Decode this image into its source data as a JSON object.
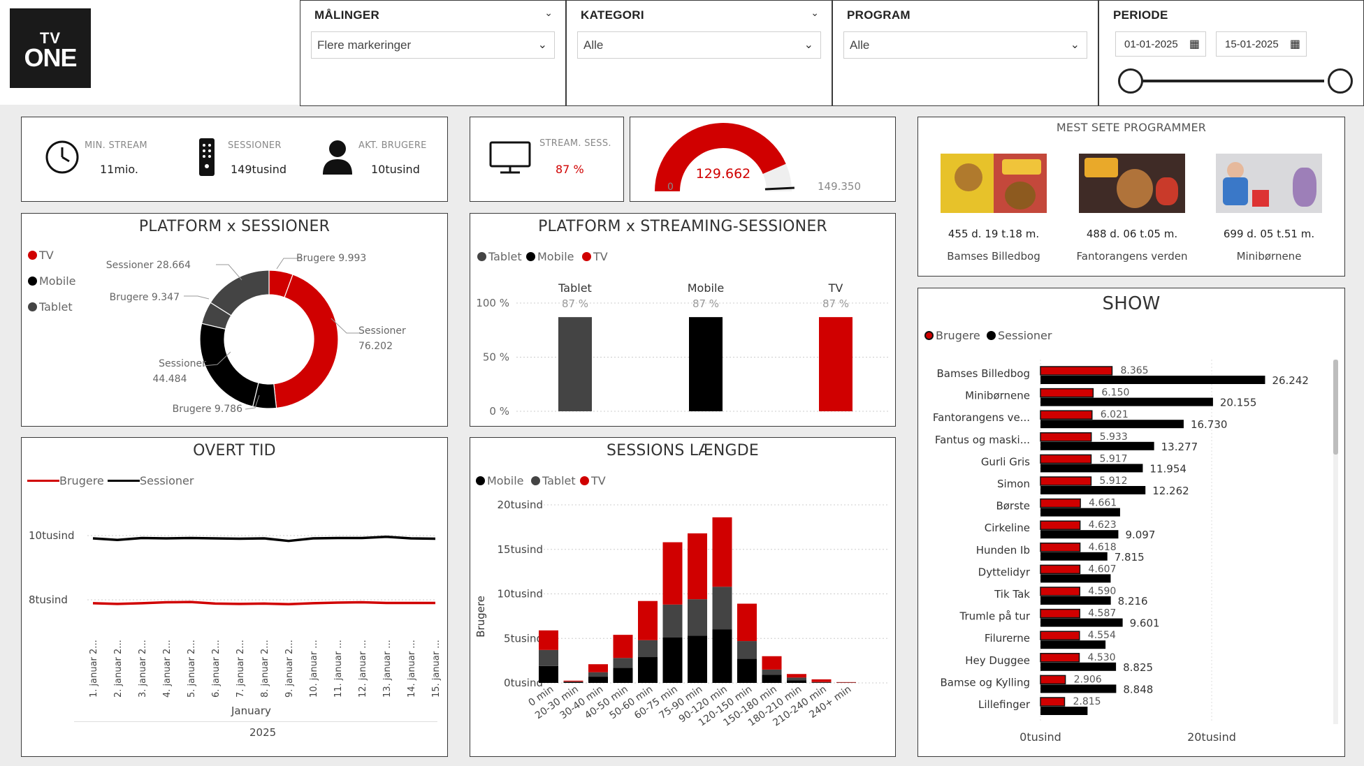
{
  "logo": {
    "line1": "TV",
    "line2": "ONE"
  },
  "filters": {
    "maalinger": {
      "title": "MÅLINGER",
      "value": "Flere markeringer"
    },
    "kategori": {
      "title": "KATEGORI",
      "value": "Alle"
    },
    "program": {
      "title": "PROGRAM",
      "value": "Alle"
    },
    "periode": {
      "title": "PERIODE",
      "from": "01-01-2025",
      "to": "15-01-2025",
      "range": [
        0,
        1
      ]
    }
  },
  "kpis": {
    "min_stream": {
      "label": "MIN. STREAM",
      "value": "11mio."
    },
    "sessioner": {
      "label": "SESSIONER",
      "value": "149tusind"
    },
    "akt_brugere": {
      "label": "AKT. BRUGERE",
      "value": "10tusind"
    },
    "stream_sess": {
      "label": "STREAM. SESS.",
      "value": "87 %"
    }
  },
  "gauge": {
    "min": "0",
    "value": "129.662",
    "max": "149.350",
    "value_num": 129662,
    "max_num": 149350,
    "target_num": 147000
  },
  "most_seen": {
    "title": "MEST SETE PROGRAMMER",
    "items": [
      {
        "duration": "455 d. 19 t.18 m.",
        "name": "Bamses Billedbog"
      },
      {
        "duration": "488 d. 06 t.05 m.",
        "name": "Fantorangens verden"
      },
      {
        "duration": "699 d. 05 t.51 m.",
        "name": "Minibørnene"
      }
    ]
  },
  "platform_sessions": {
    "title": "PLATFORM x SESSIONER",
    "legend": [
      "TV",
      "Mobile",
      "Tablet"
    ],
    "labels": {
      "sess_tablet": "Sessioner 28.664",
      "brug_tv": "Brugere 9.993",
      "brug_tablet": "Brugere 9.347",
      "sess_tv_1": "Sessioner",
      "sess_tv_2": "76.202",
      "sess_mob_1": "Sessioner",
      "sess_mob_2": "44.484",
      "brug_mob": "Brugere 9.786"
    }
  },
  "platform_streaming": {
    "title": "PLATFORM x STREAMING-SESSIONER",
    "legend": [
      "Tablet",
      "Mobile",
      "TV"
    ],
    "yticks": [
      "100 %",
      "50 %",
      "0 %"
    ],
    "bar_labels": [
      "87 %",
      "87 %",
      "87 %"
    ]
  },
  "overtime": {
    "title": "OVERT TID",
    "legend": [
      "Brugere",
      "Sessioner"
    ],
    "yticks": [
      "10tusind",
      "8tusind"
    ],
    "xlabel_month": "January",
    "xlabel_year": "2025"
  },
  "session_length": {
    "title": "SESSIONS LÆNGDE",
    "legend": [
      "Mobile",
      "Tablet",
      "TV"
    ],
    "ylabel": "Brugere",
    "yticks": [
      "20tusind",
      "15tusind",
      "10tusind",
      "5tusind",
      "0tusind"
    ]
  },
  "show": {
    "title": "SHOW",
    "legend": [
      "Brugere",
      "Sessioner"
    ],
    "xticks": [
      "0tusind",
      "20tusind"
    ]
  },
  "chart_data": [
    {
      "type": "pie",
      "title": "PLATFORM x SESSIONER",
      "rings": [
        {
          "name": "Sessioner",
          "categories": [
            "TV",
            "Mobile",
            "Tablet"
          ],
          "values": [
            76202,
            44484,
            28664
          ]
        },
        {
          "name": "Brugere",
          "categories": [
            "TV",
            "Mobile",
            "Tablet"
          ],
          "values": [
            9993,
            9786,
            9347
          ]
        }
      ]
    },
    {
      "type": "bar",
      "title": "PLATFORM x STREAMING-SESSIONER",
      "categories": [
        "Tablet",
        "Mobile",
        "TV"
      ],
      "values": [
        87,
        87,
        87
      ],
      "ylim": [
        0,
        100
      ],
      "colors": [
        "#444444",
        "#000000",
        "#d00000"
      ]
    },
    {
      "type": "line",
      "title": "OVERT TID",
      "x": [
        "1. januar 2...",
        "2. januar 2...",
        "3. januar 2...",
        "4. januar 2...",
        "5. januar 2...",
        "6. januar 2...",
        "7. januar 2...",
        "8. januar 2...",
        "9. januar 2...",
        "10. januar ...",
        "11. januar ...",
        "12. januar ...",
        "13. januar ...",
        "14. januar ...",
        "15. januar ..."
      ],
      "ylim": [
        7000,
        11000
      ],
      "series": [
        {
          "name": "Brugere",
          "color": "#d00000",
          "values": [
            7980,
            7960,
            7980,
            8010,
            8020,
            7970,
            7960,
            7970,
            7950,
            7980,
            8000,
            8010,
            7990,
            7990,
            7990
          ]
        },
        {
          "name": "Sessioner",
          "color": "#000000",
          "values": [
            10000,
            9950,
            10010,
            10000,
            10010,
            10000,
            9990,
            10000,
            9920,
            10000,
            10010,
            10010,
            10050,
            10000,
            9990
          ]
        }
      ]
    },
    {
      "type": "bar",
      "stacked": true,
      "title": "SESSIONS LÆNGDE",
      "ylabel": "Brugere",
      "ylim": [
        0,
        20000
      ],
      "categories": [
        "0 min",
        "20-30 min",
        "30-40 min",
        "40-50 min",
        "50-60 min",
        "60-75 min",
        "75-90 min",
        "90-120 min",
        "120-150 min",
        "150-180 min",
        "180-210 min",
        "210-240 min",
        "240+ min"
      ],
      "series": [
        {
          "name": "Mobile",
          "color": "#000000",
          "values": [
            1900,
            100,
            700,
            1700,
            2900,
            5100,
            5300,
            6000,
            2700,
            900,
            300,
            50,
            20
          ]
        },
        {
          "name": "Tablet",
          "color": "#444444",
          "values": [
            1800,
            50,
            500,
            1100,
            1900,
            3700,
            4100,
            4800,
            2000,
            600,
            300,
            50,
            20
          ]
        },
        {
          "name": "TV",
          "color": "#d00000",
          "values": [
            2200,
            100,
            900,
            2600,
            4400,
            7000,
            7400,
            7800,
            4200,
            1500,
            400,
            300,
            50
          ]
        }
      ]
    },
    {
      "type": "bar",
      "orientation": "horizontal",
      "title": "SHOW",
      "categories": [
        "Bamses Billedbog",
        "Minibørnene",
        "Fantorangens ve...",
        "Fantus og maski...",
        "Gurli Gris",
        "Simon",
        "Børste",
        "Cirkeline",
        "Hunden Ib",
        "Dyttelidyr",
        "Tik Tak",
        "Trumle på tur",
        "Filurerne",
        "Hey Duggee",
        "Bamse og Kylling",
        "Lillefinger"
      ],
      "series": [
        {
          "name": "Brugere",
          "color": "#d00000",
          "values": [
            8365,
            6150,
            6021,
            5933,
            5917,
            5912,
            4661,
            4623,
            4618,
            4607,
            4590,
            4587,
            4554,
            4530,
            2906,
            2815
          ],
          "labels": [
            "8.365",
            "6.150",
            "6.021",
            "5.933",
            "5.917",
            "5.912",
            "4.661",
            "4.623",
            "4.618",
            "4.607",
            "4.590",
            "4.587",
            "4.554",
            "4.530",
            "2.906",
            "2.815"
          ]
        },
        {
          "name": "Sessioner",
          "color": "#000000",
          "values": [
            26242,
            20155,
            16730,
            13277,
            11954,
            12262,
            9300,
            9097,
            7815,
            8200,
            8216,
            9601,
            7600,
            8825,
            8848,
            5500
          ],
          "labels": [
            "26.242",
            "20.155",
            "16.730",
            "13.277",
            "11.954",
            "12.262",
            "",
            "9.097",
            "7.815",
            "",
            "8.216",
            "9.601",
            "",
            "8.825",
            "8.848",
            ""
          ]
        }
      ],
      "xlim": [
        0,
        30000
      ]
    }
  ]
}
